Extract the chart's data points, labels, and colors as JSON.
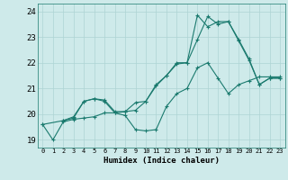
{
  "title": "",
  "xlabel": "Humidex (Indice chaleur)",
  "ylabel": "",
  "background_color": "#ceeaea",
  "grid_color": "#add4d4",
  "line_color": "#1a7a6e",
  "xlim": [
    -0.5,
    23.5
  ],
  "ylim": [
    18.7,
    24.3
  ],
  "xticks": [
    0,
    1,
    2,
    3,
    4,
    5,
    6,
    7,
    8,
    9,
    10,
    11,
    12,
    13,
    14,
    15,
    16,
    17,
    18,
    19,
    20,
    21,
    22,
    23
  ],
  "yticks": [
    19,
    20,
    21,
    22,
    23,
    24
  ],
  "line1_x": [
    0,
    1,
    2,
    3,
    4,
    5,
    6,
    7,
    8,
    9,
    10,
    11,
    12,
    13,
    14,
    15,
    16,
    17,
    18,
    19,
    20,
    21,
    22,
    23
  ],
  "line1_y": [
    19.6,
    19.0,
    19.7,
    19.8,
    19.85,
    19.9,
    20.05,
    20.05,
    19.95,
    19.4,
    19.35,
    19.4,
    20.3,
    20.8,
    21.0,
    21.8,
    22.0,
    21.4,
    20.8,
    21.15,
    21.3,
    21.45,
    21.45,
    21.45
  ],
  "line2_x": [
    2,
    3,
    4,
    5,
    6,
    7,
    8,
    9,
    10,
    11,
    12,
    13,
    14,
    15,
    16,
    17,
    18,
    19,
    20,
    21,
    22,
    23
  ],
  "line2_y": [
    19.75,
    19.85,
    20.5,
    20.6,
    20.5,
    20.05,
    20.1,
    20.15,
    20.5,
    21.15,
    21.5,
    22.0,
    22.0,
    22.9,
    23.8,
    23.5,
    23.6,
    22.9,
    22.15,
    21.15,
    21.4,
    21.4
  ],
  "line3_x": [
    0,
    2,
    3,
    4,
    5,
    6,
    7,
    8,
    9,
    10,
    11,
    12,
    13,
    14,
    15,
    16,
    17,
    18,
    19,
    20,
    21,
    22,
    23
  ],
  "line3_y": [
    19.6,
    19.75,
    19.9,
    20.5,
    20.6,
    20.55,
    20.1,
    20.1,
    20.45,
    20.5,
    21.1,
    21.5,
    21.95,
    22.0,
    23.85,
    23.4,
    23.6,
    23.6,
    22.85,
    22.1,
    21.15,
    21.4,
    21.4
  ]
}
